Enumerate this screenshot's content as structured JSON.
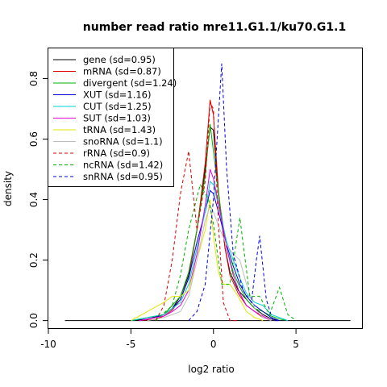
{
  "chart_data": {
    "type": "line",
    "title": "number read ratio mre11.G1.1/ku70.G1.1",
    "xlabel": "log2 ratio",
    "ylabel": "density",
    "xlim": [
      -10,
      9
    ],
    "ylim": [
      -0.025,
      0.9
    ],
    "x_ticks": [
      -10,
      -5,
      0,
      5
    ],
    "y_ticks": [
      0.0,
      0.2,
      0.4,
      0.6,
      0.8
    ],
    "x_tick_labels": [
      "-10",
      "-5",
      "0",
      "5"
    ],
    "y_tick_labels": [
      "0.0",
      "0.2",
      "0.4",
      "0.6",
      "0.8"
    ],
    "grid": false,
    "legend_position": "top-left",
    "series": [
      {
        "name": "gene (sd=0.95)",
        "color": "#000000",
        "dash": "solid",
        "points": [
          [
            -5,
            0
          ],
          [
            -4,
            0.005
          ],
          [
            -3,
            0.02
          ],
          [
            -2.5,
            0.04
          ],
          [
            -2,
            0.08
          ],
          [
            -1.5,
            0.15
          ],
          [
            -1,
            0.3
          ],
          [
            -0.5,
            0.5
          ],
          [
            -0.2,
            0.64
          ],
          [
            0,
            0.63
          ],
          [
            0.3,
            0.42
          ],
          [
            0.7,
            0.24
          ],
          [
            1,
            0.16
          ],
          [
            1.5,
            0.1
          ],
          [
            2,
            0.07
          ],
          [
            2.5,
            0.04
          ],
          [
            3,
            0.02
          ],
          [
            3.5,
            0.005
          ],
          [
            4,
            0
          ]
        ]
      },
      {
        "name": "mRNA (sd=0.87)",
        "color": "#df0000",
        "dash": "solid",
        "points": [
          [
            -4.5,
            0
          ],
          [
            -3.5,
            0.004
          ],
          [
            -3,
            0.015
          ],
          [
            -2.5,
            0.035
          ],
          [
            -2,
            0.07
          ],
          [
            -1.5,
            0.14
          ],
          [
            -1,
            0.3
          ],
          [
            -0.5,
            0.52
          ],
          [
            -0.2,
            0.73
          ],
          [
            0,
            0.68
          ],
          [
            0.3,
            0.43
          ],
          [
            0.7,
            0.24
          ],
          [
            1,
            0.15
          ],
          [
            1.5,
            0.09
          ],
          [
            2,
            0.05
          ],
          [
            2.5,
            0.03
          ],
          [
            3,
            0.01
          ],
          [
            3.5,
            0
          ]
        ]
      },
      {
        "name": "divergent (sd=1.24)",
        "color": "#00b000",
        "dash": "solid",
        "points": [
          [
            -5,
            0
          ],
          [
            -4,
            0.01
          ],
          [
            -3,
            0.02
          ],
          [
            -2.5,
            0.05
          ],
          [
            -2,
            0.08
          ],
          [
            -1.5,
            0.16
          ],
          [
            -1,
            0.3
          ],
          [
            -0.5,
            0.48
          ],
          [
            -0.2,
            0.65
          ],
          [
            0,
            0.56
          ],
          [
            0.4,
            0.38
          ],
          [
            0.8,
            0.24
          ],
          [
            1.2,
            0.16
          ],
          [
            1.6,
            0.11
          ],
          [
            2,
            0.07
          ],
          [
            2.5,
            0.04
          ],
          [
            3,
            0.03
          ],
          [
            3.5,
            0.015
          ],
          [
            4,
            0.005
          ],
          [
            4.5,
            0
          ]
        ]
      },
      {
        "name": "XUT (sd=1.16)",
        "color": "#0000df",
        "dash": "solid",
        "points": [
          [
            -4.5,
            0
          ],
          [
            -3.5,
            0.01
          ],
          [
            -3,
            0.02
          ],
          [
            -2.5,
            0.04
          ],
          [
            -2,
            0.07
          ],
          [
            -1.5,
            0.14
          ],
          [
            -1,
            0.26
          ],
          [
            -0.5,
            0.36
          ],
          [
            -0.2,
            0.43
          ],
          [
            0,
            0.42
          ],
          [
            0.4,
            0.34
          ],
          [
            0.8,
            0.25
          ],
          [
            1.2,
            0.18
          ],
          [
            1.6,
            0.12
          ],
          [
            2,
            0.08
          ],
          [
            2.5,
            0.05
          ],
          [
            3,
            0.03
          ],
          [
            3.5,
            0.01
          ],
          [
            4,
            0
          ]
        ]
      },
      {
        "name": "CUT (sd=1.25)",
        "color": "#00d0d0",
        "dash": "solid",
        "points": [
          [
            -5,
            0
          ],
          [
            -4,
            0.01
          ],
          [
            -3,
            0.02
          ],
          [
            -2.5,
            0.04
          ],
          [
            -2,
            0.06
          ],
          [
            -1.5,
            0.12
          ],
          [
            -1,
            0.24
          ],
          [
            -0.5,
            0.36
          ],
          [
            -0.2,
            0.46
          ],
          [
            0,
            0.45
          ],
          [
            0.4,
            0.36
          ],
          [
            0.8,
            0.26
          ],
          [
            1.2,
            0.2
          ],
          [
            1.6,
            0.14
          ],
          [
            2,
            0.09
          ],
          [
            2.5,
            0.06
          ],
          [
            3,
            0.05
          ],
          [
            3.5,
            0.02
          ],
          [
            4,
            0.01
          ],
          [
            4.5,
            0
          ]
        ]
      },
      {
        "name": "SUT (sd=1.03)",
        "color": "#df00df",
        "dash": "solid",
        "points": [
          [
            -4.5,
            0
          ],
          [
            -3.5,
            0.01
          ],
          [
            -3,
            0.015
          ],
          [
            -2.5,
            0.03
          ],
          [
            -2,
            0.05
          ],
          [
            -1.5,
            0.1
          ],
          [
            -1,
            0.22
          ],
          [
            -0.5,
            0.38
          ],
          [
            -0.2,
            0.5
          ],
          [
            0,
            0.47
          ],
          [
            0.4,
            0.36
          ],
          [
            0.8,
            0.24
          ],
          [
            1.2,
            0.15
          ],
          [
            1.6,
            0.09
          ],
          [
            2,
            0.05
          ],
          [
            2.5,
            0.03
          ],
          [
            3,
            0.015
          ],
          [
            3.5,
            0
          ]
        ]
      },
      {
        "name": "tRNA (sd=1.43)",
        "color": "#e6e600",
        "dash": "solid",
        "points": [
          [
            -5,
            0
          ],
          [
            -4.5,
            0.015
          ],
          [
            -4,
            0.03
          ],
          [
            -3.5,
            0.045
          ],
          [
            -3,
            0.06
          ],
          [
            -2.5,
            0.08
          ],
          [
            -2,
            0.08
          ],
          [
            -1.5,
            0.1
          ],
          [
            -1,
            0.2
          ],
          [
            -0.5,
            0.3
          ],
          [
            -0.2,
            0.4
          ],
          [
            0,
            0.28
          ],
          [
            0.3,
            0.16
          ],
          [
            0.6,
            0.12
          ],
          [
            1,
            0.12
          ],
          [
            1.5,
            0.08
          ],
          [
            2,
            0.03
          ],
          [
            2.5,
            0.01
          ],
          [
            3,
            0
          ]
        ]
      },
      {
        "name": "snoRNA (sd=1.1)",
        "color": "#bebebe",
        "dash": "solid",
        "points": [
          [
            -4,
            0
          ],
          [
            -3,
            0.01
          ],
          [
            -2.5,
            0.02
          ],
          [
            -2,
            0.03
          ],
          [
            -1.5,
            0.08
          ],
          [
            -1,
            0.2
          ],
          [
            -0.5,
            0.33
          ],
          [
            -0.2,
            0.38
          ],
          [
            0,
            0.36
          ],
          [
            0.4,
            0.3
          ],
          [
            0.8,
            0.25
          ],
          [
            1.2,
            0.22
          ],
          [
            1.6,
            0.2
          ],
          [
            2,
            0.12
          ],
          [
            2.5,
            0.04
          ],
          [
            3,
            0.01
          ],
          [
            3.5,
            0
          ]
        ]
      },
      {
        "name": "rRNA (sd=0.9)",
        "color": "#df0000",
        "dash": "dashed",
        "points": [
          [
            -3.5,
            0
          ],
          [
            -3,
            0.05
          ],
          [
            -2.5,
            0.2
          ],
          [
            -2,
            0.42
          ],
          [
            -1.5,
            0.56
          ],
          [
            -1,
            0.3
          ],
          [
            -0.5,
            0.46
          ],
          [
            -0.2,
            0.72
          ],
          [
            0,
            0.7
          ],
          [
            0.3,
            0.32
          ],
          [
            0.6,
            0.06
          ],
          [
            1,
            0
          ],
          [
            1.5,
            0
          ]
        ]
      },
      {
        "name": "ncRNA (sd=1.42)",
        "color": "#00b000",
        "dash": "dashed",
        "points": [
          [
            -3.5,
            0
          ],
          [
            -2.5,
            0.05
          ],
          [
            -2,
            0.15
          ],
          [
            -1.5,
            0.3
          ],
          [
            -0.8,
            0.45
          ],
          [
            -0.3,
            0.4
          ],
          [
            0,
            0.32
          ],
          [
            0.5,
            0.12
          ],
          [
            1,
            0.12
          ],
          [
            1.6,
            0.34
          ],
          [
            2.2,
            0.08
          ],
          [
            2.8,
            0.08
          ],
          [
            3.4,
            0.02
          ],
          [
            4,
            0.11
          ],
          [
            4.5,
            0.02
          ],
          [
            5,
            0
          ]
        ]
      },
      {
        "name": "snRNA (sd=0.95)",
        "color": "#0000df",
        "dash": "dashed",
        "points": [
          [
            -1.5,
            0
          ],
          [
            -1,
            0.03
          ],
          [
            -0.5,
            0.12
          ],
          [
            0,
            0.4
          ],
          [
            0.5,
            0.85
          ],
          [
            0.8,
            0.5
          ],
          [
            1.2,
            0.22
          ],
          [
            1.8,
            0.1
          ],
          [
            2.3,
            0.06
          ],
          [
            2.6,
            0.2
          ],
          [
            2.8,
            0.28
          ],
          [
            3.2,
            0.07
          ],
          [
            3.6,
            0
          ],
          [
            4,
            0
          ]
        ]
      }
    ],
    "baseline": {
      "color": "#000000",
      "from": -9,
      "to": 8.3,
      "y": 0
    }
  }
}
